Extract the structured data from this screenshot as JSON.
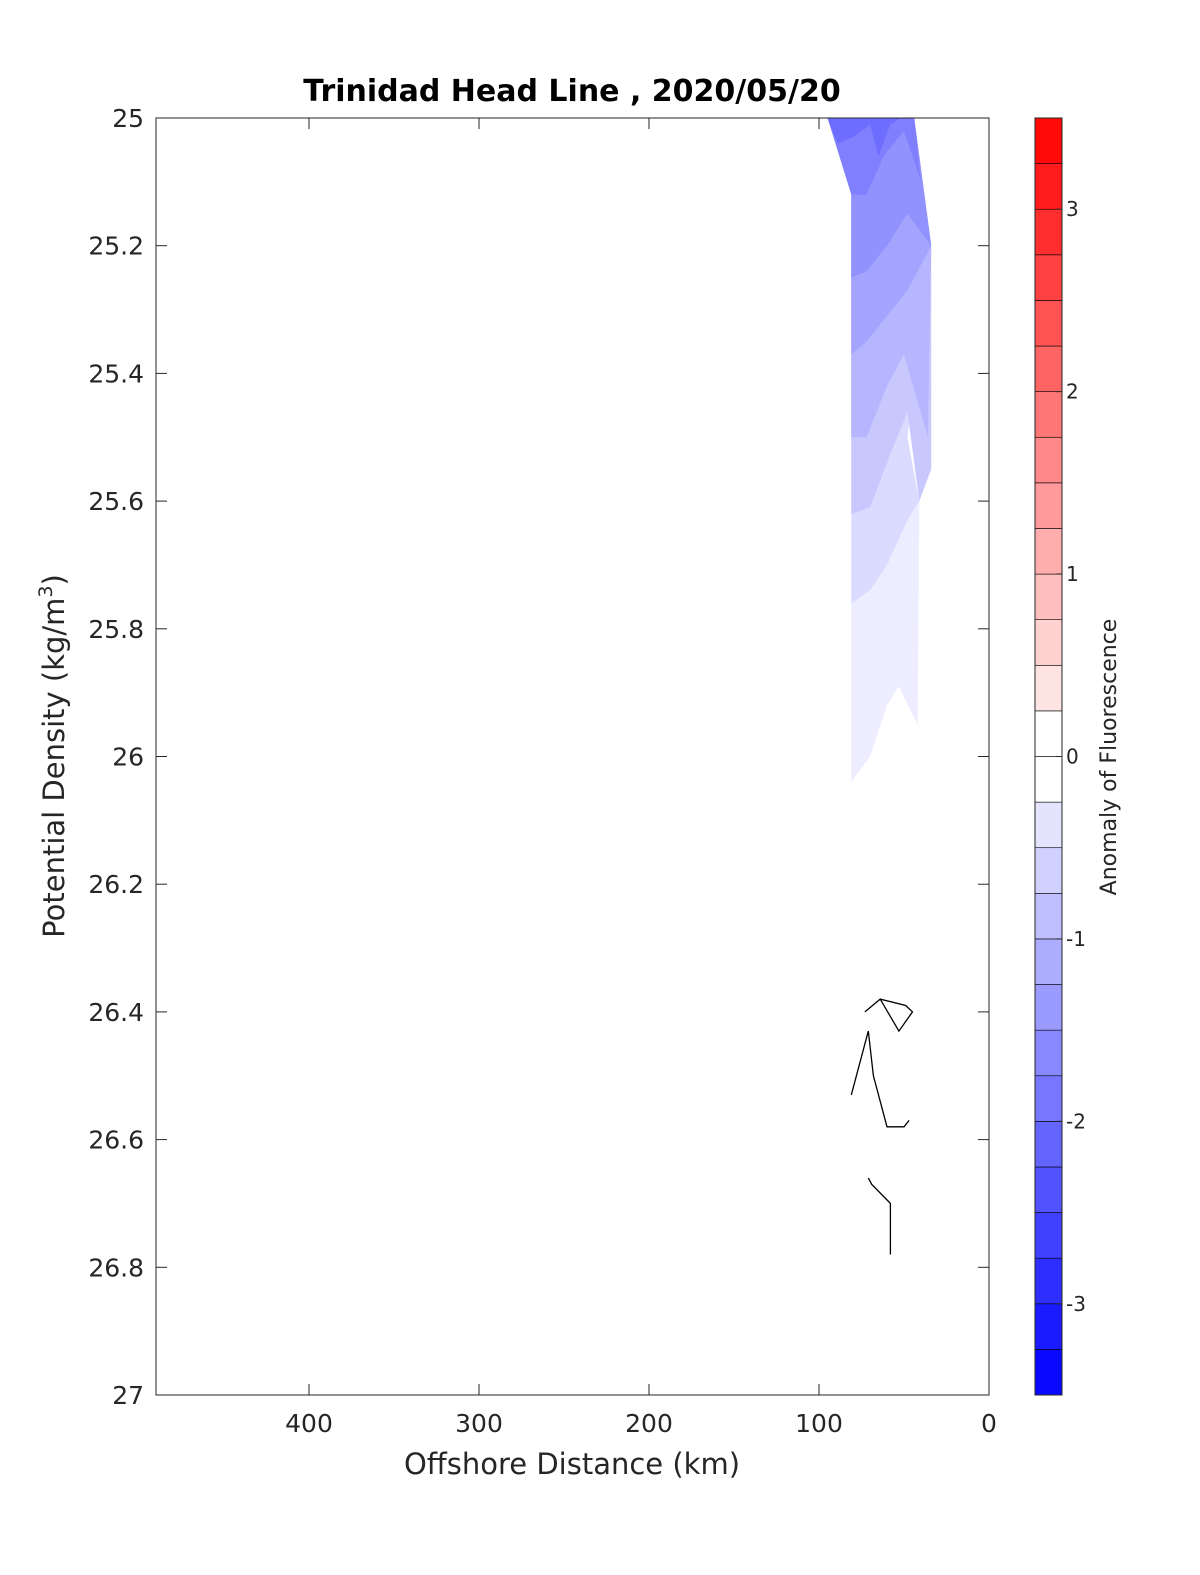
{
  "chart_data": {
    "type": "contour",
    "title": "Trinidad Head Line , 2020/05/20",
    "xlabel": "Offshore Distance (km)",
    "ylabel": "Potential Density (kg/m",
    "ylabel_superscript": "3",
    "ylabel_suffix": ")",
    "colorbar_label": "Anomaly of Fluorescence",
    "xlim": [
      490,
      0
    ],
    "xaxis_reversed": true,
    "ylim": [
      25,
      27
    ],
    "yaxis_reversed": true,
    "xticks": [
      400,
      300,
      200,
      100,
      0
    ],
    "xtick_labels": [
      "400",
      "300",
      "200",
      "100",
      "0"
    ],
    "yticks": [
      25,
      25.2,
      25.4,
      25.6,
      25.8,
      26,
      26.2,
      26.4,
      26.6,
      26.8,
      27
    ],
    "ytick_labels": [
      "25",
      "25.2",
      "25.4",
      "25.6",
      "25.8",
      "26",
      "26.2",
      "26.4",
      "26.6",
      "26.8",
      "27"
    ],
    "colorbar_range": [
      -3.5,
      3.5
    ],
    "colorbar_step": 0.25,
    "colorbar_ticks": [
      -3,
      -2,
      -1,
      0,
      1,
      2,
      3
    ],
    "colorbar_tick_labels": [
      "-3",
      "-2",
      "-1",
      "0",
      "1",
      "2",
      "3"
    ],
    "colormap": {
      "negative": "#0000ff",
      "zero": "#ffffff",
      "positive": "#ff0000"
    },
    "grid": false,
    "filled_regions": [
      {
        "level": -0.25,
        "points": [
          [
            81,
            26.04
          ],
          [
            70,
            26.0
          ],
          [
            60,
            25.92
          ],
          [
            53,
            25.89
          ],
          [
            42,
            25.95
          ],
          [
            41,
            25.6
          ],
          [
            48,
            25.5
          ],
          [
            34,
            25.2
          ],
          [
            44,
            25
          ],
          [
            95,
            25
          ],
          [
            81,
            25.1
          ]
        ]
      },
      {
        "level": -0.5,
        "points": [
          [
            81,
            25.76
          ],
          [
            70,
            25.74
          ],
          [
            60,
            25.7
          ],
          [
            48,
            25.63
          ],
          [
            41,
            25.6
          ],
          [
            48,
            25.5
          ],
          [
            34,
            25.2
          ],
          [
            44,
            25
          ],
          [
            95,
            25
          ],
          [
            81,
            25.1
          ]
        ]
      },
      {
        "level": -0.75,
        "points": [
          [
            81,
            25.62
          ],
          [
            70,
            25.61
          ],
          [
            60,
            25.54
          ],
          [
            48,
            25.46
          ],
          [
            41,
            25.6
          ],
          [
            34,
            25.55
          ],
          [
            34,
            25.2
          ],
          [
            44,
            25
          ],
          [
            95,
            25
          ],
          [
            81,
            25.1
          ]
        ]
      },
      {
        "level": -1.0,
        "points": [
          [
            81,
            25.5
          ],
          [
            72,
            25.5
          ],
          [
            60,
            25.42
          ],
          [
            50,
            25.37
          ],
          [
            36,
            25.5
          ],
          [
            34,
            25.2
          ],
          [
            44,
            25
          ],
          [
            95,
            25
          ],
          [
            81,
            25.1
          ]
        ]
      },
      {
        "level": -1.25,
        "points": [
          [
            81,
            25.37
          ],
          [
            72,
            25.35
          ],
          [
            60,
            25.31
          ],
          [
            48,
            25.27
          ],
          [
            34,
            25.2
          ],
          [
            44,
            25
          ],
          [
            95,
            25
          ],
          [
            81,
            25.1
          ]
        ]
      },
      {
        "level": -1.5,
        "points": [
          [
            81,
            25.25
          ],
          [
            72,
            25.24
          ],
          [
            60,
            25.2
          ],
          [
            48,
            25.15
          ],
          [
            34,
            25.2
          ],
          [
            44,
            25
          ],
          [
            95,
            25
          ],
          [
            81,
            25.1
          ]
        ]
      },
      {
        "level": -1.75,
        "points": [
          [
            81,
            25.12
          ],
          [
            72,
            25.12
          ],
          [
            62,
            25.06
          ],
          [
            50,
            25.02
          ],
          [
            40,
            25.1
          ],
          [
            44,
            25
          ],
          [
            95,
            25
          ]
        ]
      },
      {
        "level": -2.0,
        "points": [
          [
            89,
            25.04
          ],
          [
            80,
            25.03
          ],
          [
            70,
            25.01
          ],
          [
            65,
            25.06
          ],
          [
            58,
            25.01
          ],
          [
            52,
            25
          ],
          [
            95,
            25
          ]
        ]
      }
    ],
    "zero_contours": [
      {
        "points": [
          [
            73,
            26.4
          ],
          [
            64,
            26.38
          ],
          [
            53,
            26.43
          ],
          [
            45,
            26.4
          ],
          [
            49,
            26.39
          ],
          [
            64,
            26.38
          ]
        ],
        "closed": true
      },
      {
        "points": [
          [
            81,
            26.53
          ],
          [
            71,
            26.43
          ],
          [
            68,
            26.5
          ],
          [
            60,
            26.58
          ],
          [
            50,
            26.58
          ],
          [
            47,
            26.57
          ]
        ],
        "closed": false
      },
      {
        "points": [
          [
            71,
            26.66
          ],
          [
            69,
            26.67
          ],
          [
            58,
            26.7
          ],
          [
            58,
            26.78
          ]
        ],
        "closed": false
      }
    ]
  }
}
